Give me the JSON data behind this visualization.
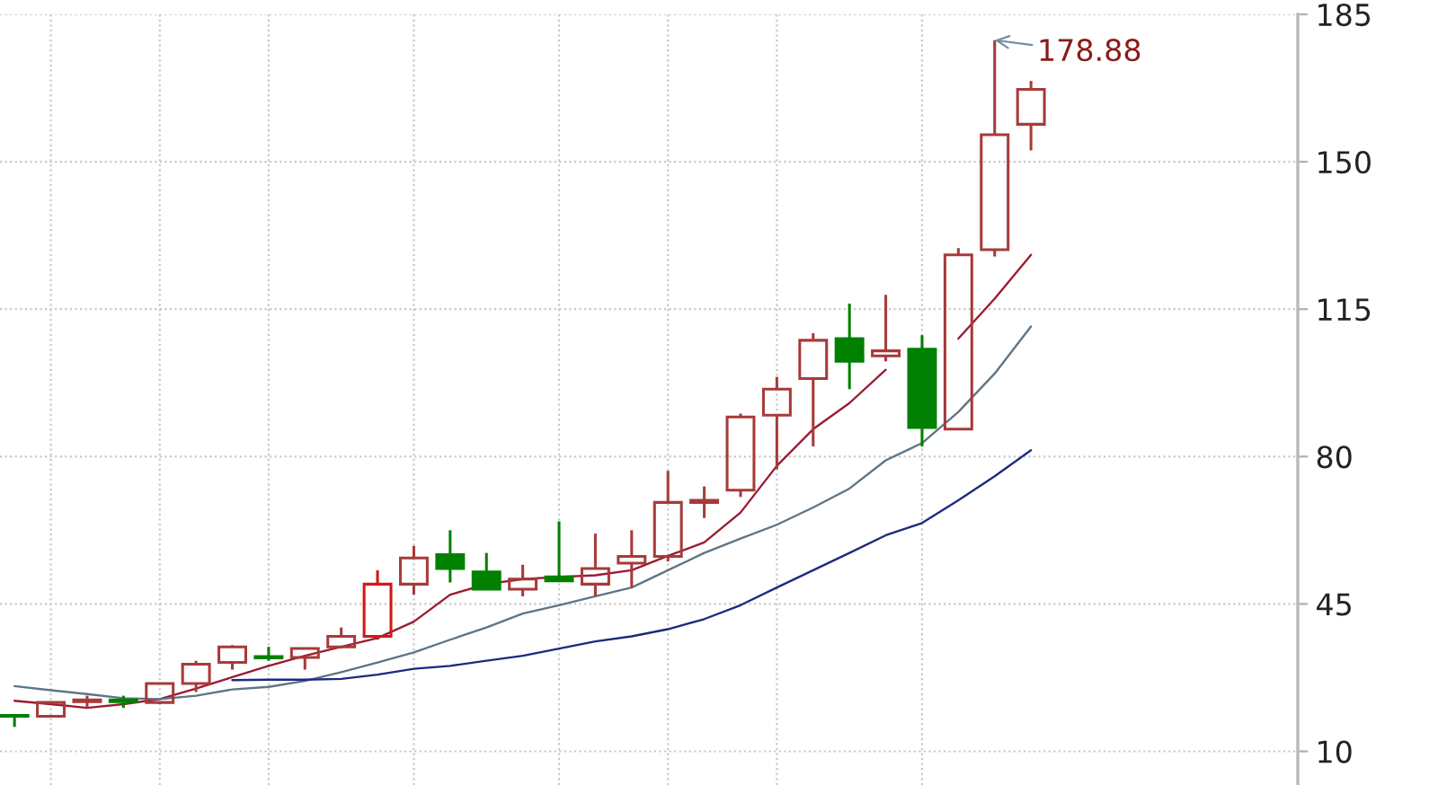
{
  "chart_data": {
    "type": "candlestick",
    "categories": [
      null,
      null,
      null,
      null,
      null,
      null,
      null,
      null,
      null,
      null,
      null,
      null,
      null,
      null,
      null,
      null,
      null,
      null,
      null,
      null,
      null,
      null,
      null,
      null,
      null,
      null,
      null,
      null,
      null,
      null,
      null,
      null,
      null,
      null,
      null,
      null
    ],
    "ohlc": [
      [
        18.5,
        18.8,
        15.8,
        18.3
      ],
      [
        18.3,
        21.8,
        18.1,
        21.6
      ],
      [
        21.8,
        23.2,
        20.3,
        22.2
      ],
      [
        22.2,
        23.2,
        20.3,
        21.8
      ],
      [
        21.6,
        26.3,
        21.2,
        26.1
      ],
      [
        26.1,
        31.5,
        24.1,
        30.7
      ],
      [
        31.1,
        35.2,
        29.4,
        34.8
      ],
      [
        32.5,
        34.8,
        31.5,
        32.2
      ],
      [
        32.3,
        34.6,
        29.4,
        34.4
      ],
      [
        34.8,
        39.4,
        34.4,
        37.3
      ],
      [
        37.3,
        53.0,
        36.5,
        49.7
      ],
      [
        49.7,
        58.8,
        47.2,
        55.9
      ],
      [
        56.7,
        62.5,
        50.1,
        53.4
      ],
      [
        52.6,
        57.1,
        48.5,
        48.5
      ],
      [
        48.5,
        54.3,
        46.8,
        50.9
      ],
      [
        51.4,
        64.6,
        50.5,
        50.5
      ],
      [
        49.7,
        61.7,
        46.8,
        53.4
      ],
      [
        54.7,
        62.5,
        48.9,
        56.3
      ],
      [
        56.3,
        76.6,
        55.1,
        69.1
      ],
      [
        69.1,
        72.9,
        65.4,
        69.6
      ],
      [
        72.0,
        90.2,
        70.4,
        89.4
      ],
      [
        89.8,
        98.9,
        77.0,
        96.0
      ],
      [
        98.5,
        109.3,
        82.4,
        107.6
      ],
      [
        108.0,
        116.3,
        96.0,
        102.6
      ],
      [
        103.9,
        118.4,
        102.6,
        105.1
      ],
      [
        105.5,
        108.8,
        82.4,
        86.9
      ],
      [
        86.5,
        129.5,
        86.3,
        127.9
      ],
      [
        129.1,
        178.88,
        127.5,
        156.4
      ],
      [
        158.9,
        169.2,
        152.7,
        167.2
      ],
      null,
      null,
      null,
      null,
      null,
      null,
      null
    ],
    "colors": [
      "#008000",
      "#a83a3a",
      "#a83a3a",
      "#008000",
      "#a83a3a",
      "#a83a3a",
      "#a83a3a",
      "#008000",
      "#a83a3a",
      "#a83a3a",
      "#d01818",
      "#a83a3a",
      "#008000",
      "#008000",
      "#a83a3a",
      "#008000",
      "#a83a3a",
      "#a83a3a",
      "#a83a3a",
      "#a83a3a",
      "#a83a3a",
      "#a83a3a",
      "#a83a3a",
      "#008000",
      "#a83a3a",
      "#008000",
      "#a83a3a",
      "#a83a3a",
      "#a83a3a",
      null,
      null,
      null,
      null,
      null,
      null,
      null
    ],
    "series": [
      {
        "type": "line",
        "color": "#9b1b30",
        "values": [
          22.0,
          21.2,
          20.3,
          21.2,
          22.4,
          24.9,
          27.6,
          30.3,
          32.7,
          34.8,
          36.9,
          40.8,
          47.2,
          49.7,
          50.9,
          51.4,
          51.8,
          53.0,
          56.4,
          59.6,
          66.7,
          77.8,
          86.5,
          92.7,
          100.6,
          null,
          108.0,
          117.5,
          127.9,
          null,
          null,
          null,
          null,
          null,
          null,
          null
        ]
      },
      {
        "type": "line",
        "color": "#5f7585",
        "values": [
          25.5,
          24.5,
          23.6,
          22.6,
          22.4,
          23.2,
          24.7,
          25.3,
          26.7,
          28.8,
          31.1,
          33.5,
          36.5,
          39.4,
          42.7,
          44.7,
          46.8,
          48.9,
          53.0,
          57.1,
          60.5,
          63.8,
          67.9,
          72.4,
          79.1,
          83.2,
          90.6,
          99.7,
          110.9,
          null,
          null,
          null,
          null,
          null,
          null,
          null
        ]
      },
      {
        "type": "line",
        "color": "#1c2a80",
        "values": [
          null,
          null,
          null,
          null,
          null,
          null,
          26.9,
          27.0,
          27.0,
          27.2,
          28.2,
          29.6,
          30.3,
          31.5,
          32.7,
          34.4,
          36.1,
          37.3,
          39.0,
          41.4,
          44.7,
          48.9,
          53.0,
          57.1,
          61.3,
          64.2,
          69.6,
          75.3,
          81.5,
          null,
          null,
          null,
          null,
          null,
          null,
          null
        ]
      }
    ],
    "ylim": [
      2,
      185
    ],
    "yticks": [
      10,
      45,
      80,
      115,
      150,
      185
    ],
    "grid": true,
    "tick_labels": "y",
    "annotations": [
      "178.88"
    ]
  }
}
